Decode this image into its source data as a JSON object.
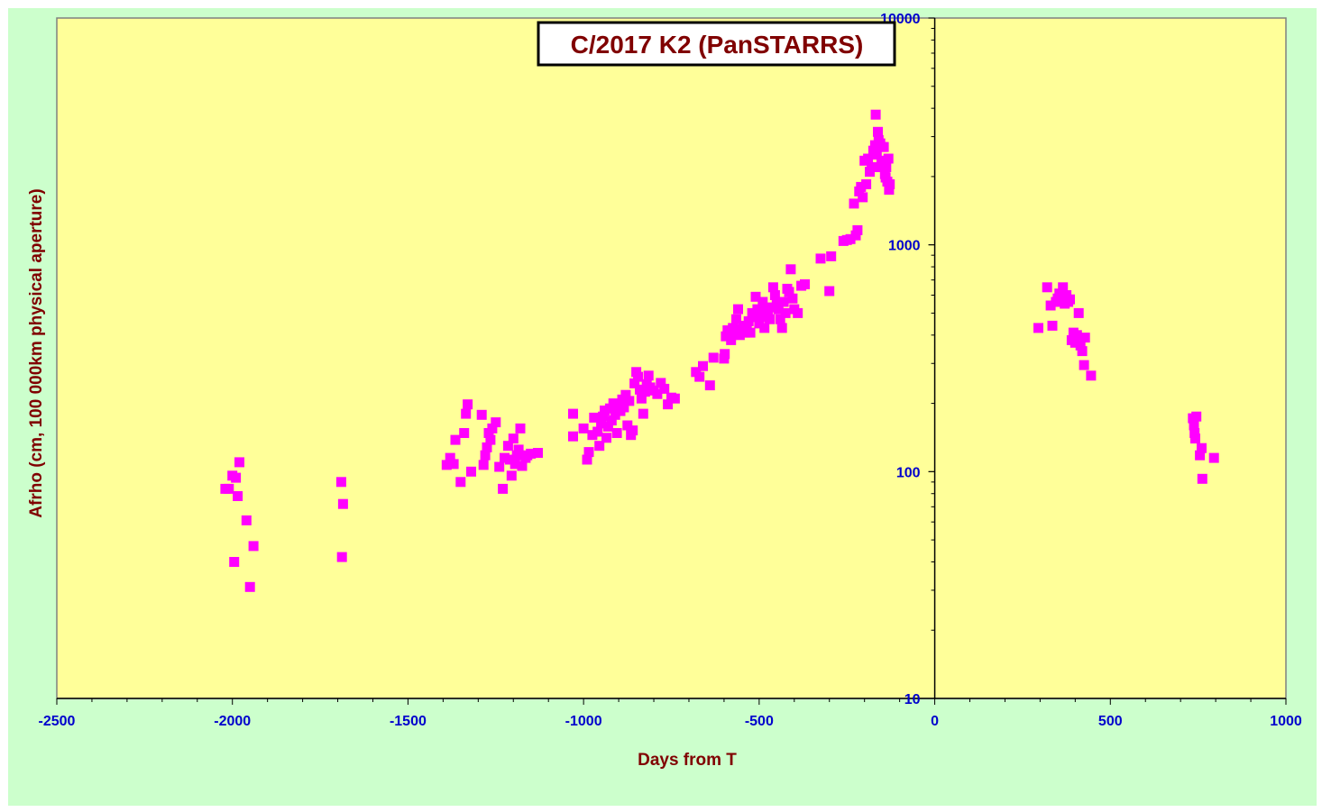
{
  "colors": {
    "background": "#ccffcc",
    "plot_area": "#ffff99",
    "marker": "#ff00ff",
    "axis_title": "#800000",
    "tick_label": "#0000cc",
    "title_text": "#800000"
  },
  "chart_data": {
    "type": "scatter",
    "title": "C/2017 K2 (PanSTARRS)",
    "xlabel": "Days from  T",
    "ylabel": "Afrho (cm, 100 000km physical aperture)",
    "xlim": [
      -2500,
      1000
    ],
    "ylim": [
      10,
      10000
    ],
    "yscale": "log",
    "grid": false,
    "x_ticks": [
      -2500,
      -2000,
      -1500,
      -1000,
      -500,
      0,
      500,
      1000
    ],
    "x_tick_labels": [
      "-2500",
      "-2000",
      "-1500",
      "-1000",
      "-500",
      "0",
      "500",
      "1000"
    ],
    "y_ticks": [
      10,
      100,
      1000,
      10000
    ],
    "y_tick_labels": [
      "10",
      "100",
      "1000",
      "10000"
    ],
    "marker": "square",
    "series": [
      {
        "points": [
          [
            -2020,
            84
          ],
          [
            -2010,
            84
          ],
          [
            -2000,
            96
          ],
          [
            -1990,
            94
          ],
          [
            -1985,
            78
          ],
          [
            -1980,
            110
          ],
          [
            -1960,
            61
          ],
          [
            -1940,
            47
          ],
          [
            -1995,
            40
          ],
          [
            -1950,
            31
          ],
          [
            -1690,
            90
          ],
          [
            -1685,
            72
          ],
          [
            -1688,
            42
          ],
          [
            -1390,
            107
          ],
          [
            -1380,
            115
          ],
          [
            -1370,
            108
          ],
          [
            -1365,
            138
          ],
          [
            -1350,
            90
          ],
          [
            -1340,
            148
          ],
          [
            -1335,
            180
          ],
          [
            -1330,
            198
          ],
          [
            -1320,
            100
          ],
          [
            -1290,
            178
          ],
          [
            -1285,
            107
          ],
          [
            -1280,
            118
          ],
          [
            -1275,
            128
          ],
          [
            -1270,
            148
          ],
          [
            -1265,
            138
          ],
          [
            -1260,
            155
          ],
          [
            -1250,
            165
          ],
          [
            -1240,
            105
          ],
          [
            -1230,
            84
          ],
          [
            -1225,
            115
          ],
          [
            -1215,
            130
          ],
          [
            -1210,
            113
          ],
          [
            -1205,
            96
          ],
          [
            -1200,
            140
          ],
          [
            -1195,
            108
          ],
          [
            -1190,
            118
          ],
          [
            -1185,
            125
          ],
          [
            -1180,
            155
          ],
          [
            -1175,
            106
          ],
          [
            -1165,
            115
          ],
          [
            -1160,
            118
          ],
          [
            -1150,
            120
          ],
          [
            -1130,
            121
          ],
          [
            -1030,
            180
          ],
          [
            -1030,
            143
          ],
          [
            -1000,
            155
          ],
          [
            -990,
            113
          ],
          [
            -985,
            122
          ],
          [
            -975,
            145
          ],
          [
            -970,
            173
          ],
          [
            -960,
            150
          ],
          [
            -955,
            130
          ],
          [
            -950,
            163
          ],
          [
            -945,
            175
          ],
          [
            -940,
            186
          ],
          [
            -935,
            141
          ],
          [
            -930,
            158
          ],
          [
            -925,
            190
          ],
          [
            -920,
            168
          ],
          [
            -915,
            200
          ],
          [
            -910,
            178
          ],
          [
            -905,
            148
          ],
          [
            -900,
            195
          ],
          [
            -895,
            185
          ],
          [
            -890,
            208
          ],
          [
            -885,
            192
          ],
          [
            -880,
            218
          ],
          [
            -875,
            160
          ],
          [
            -870,
            205
          ],
          [
            -865,
            145
          ],
          [
            -860,
            152
          ],
          [
            -855,
            245
          ],
          [
            -850,
            275
          ],
          [
            -845,
            262
          ],
          [
            -840,
            230
          ],
          [
            -835,
            210
          ],
          [
            -830,
            180
          ],
          [
            -825,
            225
          ],
          [
            -820,
            243
          ],
          [
            -815,
            265
          ],
          [
            -810,
            235
          ],
          [
            -800,
            228
          ],
          [
            -790,
            220
          ],
          [
            -780,
            246
          ],
          [
            -770,
            232
          ],
          [
            -760,
            198
          ],
          [
            -750,
            212
          ],
          [
            -740,
            210
          ],
          [
            -680,
            275
          ],
          [
            -670,
            262
          ],
          [
            -660,
            292
          ],
          [
            -640,
            240
          ],
          [
            -630,
            318
          ],
          [
            -600,
            315
          ],
          [
            -598,
            330
          ],
          [
            -595,
            395
          ],
          [
            -590,
            420
          ],
          [
            -585,
            410
          ],
          [
            -580,
            380
          ],
          [
            -575,
            430
          ],
          [
            -570,
            415
          ],
          [
            -565,
            470
          ],
          [
            -560,
            520
          ],
          [
            -555,
            400
          ],
          [
            -550,
            425
          ],
          [
            -545,
            440
          ],
          [
            -540,
            410
          ],
          [
            -535,
            420
          ],
          [
            -530,
            460
          ],
          [
            -525,
            410
          ],
          [
            -520,
            500
          ],
          [
            -515,
            480
          ],
          [
            -510,
            590
          ],
          [
            -505,
            520
          ],
          [
            -500,
            450
          ],
          [
            -495,
            480
          ],
          [
            -490,
            560
          ],
          [
            -485,
            430
          ],
          [
            -480,
            520
          ],
          [
            -475,
            500
          ],
          [
            -470,
            470
          ],
          [
            -465,
            530
          ],
          [
            -460,
            650
          ],
          [
            -455,
            600
          ],
          [
            -450,
            550
          ],
          [
            -445,
            520
          ],
          [
            -440,
            470
          ],
          [
            -435,
            430
          ],
          [
            -430,
            560
          ],
          [
            -425,
            500
          ],
          [
            -420,
            640
          ],
          [
            -415,
            620
          ],
          [
            -410,
            780
          ],
          [
            -405,
            580
          ],
          [
            -400,
            520
          ],
          [
            -390,
            500
          ],
          [
            -380,
            660
          ],
          [
            -370,
            670
          ],
          [
            -325,
            870
          ],
          [
            -295,
            890
          ],
          [
            -300,
            625
          ],
          [
            -260,
            1040
          ],
          [
            -250,
            1050
          ],
          [
            -240,
            1060
          ],
          [
            -230,
            1520
          ],
          [
            -225,
            1100
          ],
          [
            -220,
            1160
          ],
          [
            -215,
            1720
          ],
          [
            -210,
            1800
          ],
          [
            -205,
            1620
          ],
          [
            -200,
            2350
          ],
          [
            -195,
            1850
          ],
          [
            -190,
            2400
          ],
          [
            -185,
            2100
          ],
          [
            -180,
            2200
          ],
          [
            -175,
            2600
          ],
          [
            -170,
            2750
          ],
          [
            -168,
            3750
          ],
          [
            -165,
            2500
          ],
          [
            -162,
            3150
          ],
          [
            -160,
            2900
          ],
          [
            -158,
            2200
          ],
          [
            -155,
            2800
          ],
          [
            -152,
            2350
          ],
          [
            -150,
            2700
          ],
          [
            -148,
            2200
          ],
          [
            -145,
            2700
          ],
          [
            -142,
            2050
          ],
          [
            -140,
            1980
          ],
          [
            -138,
            2200
          ],
          [
            -135,
            1900
          ],
          [
            -132,
            2400
          ],
          [
            -130,
            1750
          ],
          [
            -128,
            1850
          ],
          [
            295,
            430
          ],
          [
            320,
            650
          ],
          [
            330,
            540
          ],
          [
            335,
            440
          ],
          [
            345,
            560
          ],
          [
            350,
            580
          ],
          [
            355,
            610
          ],
          [
            360,
            590
          ],
          [
            365,
            650
          ],
          [
            370,
            550
          ],
          [
            375,
            600
          ],
          [
            380,
            560
          ],
          [
            385,
            575
          ],
          [
            390,
            380
          ],
          [
            395,
            410
          ],
          [
            400,
            370
          ],
          [
            405,
            400
          ],
          [
            410,
            500
          ],
          [
            415,
            360
          ],
          [
            420,
            340
          ],
          [
            425,
            295
          ],
          [
            428,
            390
          ],
          [
            445,
            265
          ],
          [
            735,
            172
          ],
          [
            738,
            160
          ],
          [
            740,
            148
          ],
          [
            742,
            140
          ],
          [
            745,
            175
          ],
          [
            755,
            118
          ],
          [
            760,
            127
          ],
          [
            762,
            93
          ],
          [
            795,
            115
          ]
        ]
      }
    ]
  }
}
